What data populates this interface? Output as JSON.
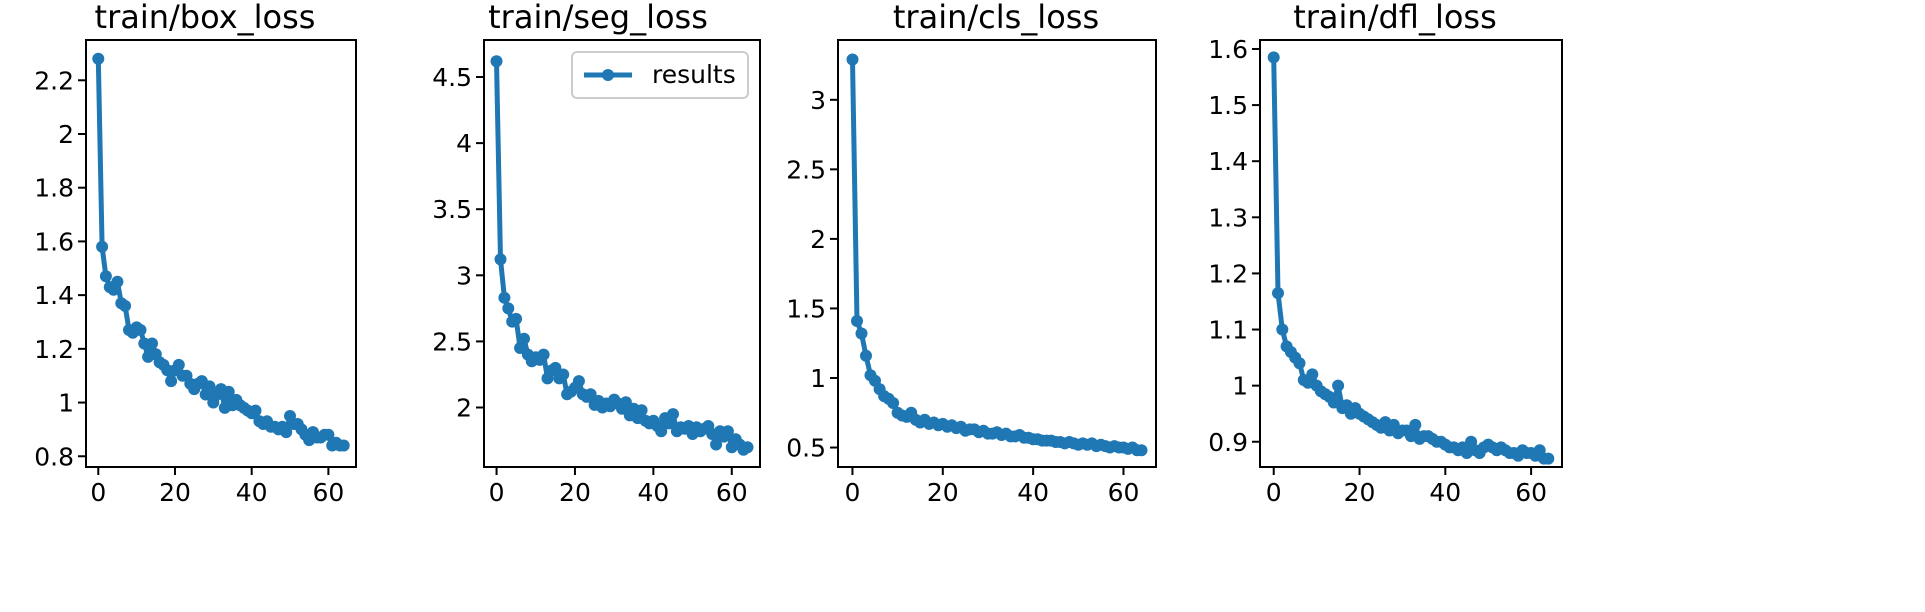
{
  "chart_data": [
    {
      "type": "line",
      "title": "train/box_loss",
      "xlabel": "",
      "ylabel": "",
      "xlim": [
        -3.2,
        67.2
      ],
      "ylim": [
        0.76,
        2.35
      ],
      "xticks": [
        0,
        20,
        40,
        60
      ],
      "yticks": [
        0.8,
        1.0,
        1.2,
        1.4,
        1.6,
        1.8,
        2.0,
        2.2
      ],
      "color": "#1f77b4",
      "grid": false,
      "series": [
        {
          "x": [
            0,
            1,
            2,
            3,
            4,
            5,
            6,
            7,
            8,
            9,
            10,
            11,
            12,
            13,
            14,
            15,
            16,
            17,
            18,
            19,
            20,
            21,
            22,
            23,
            24,
            25,
            26,
            27,
            28,
            29,
            30,
            31,
            32,
            33,
            34,
            35,
            36,
            37,
            38,
            39,
            40,
            41,
            42,
            43,
            44,
            45,
            46,
            47,
            48,
            49,
            50,
            51,
            52,
            53,
            54,
            55,
            56,
            57,
            58,
            59,
            60,
            61,
            62,
            63,
            64
          ],
          "values": [
            2.28,
            1.58,
            1.47,
            1.43,
            1.42,
            1.45,
            1.37,
            1.36,
            1.27,
            1.26,
            1.28,
            1.27,
            1.22,
            1.17,
            1.22,
            1.18,
            1.15,
            1.14,
            1.12,
            1.08,
            1.12,
            1.14,
            1.1,
            1.1,
            1.07,
            1.05,
            1.07,
            1.08,
            1.03,
            1.06,
            1.0,
            1.03,
            1.05,
            0.98,
            1.04,
            0.99,
            1.01,
            0.99,
            0.98,
            0.97,
            0.96,
            0.97,
            0.93,
            0.92,
            0.93,
            0.91,
            0.91,
            0.9,
            0.91,
            0.89,
            0.95,
            0.92,
            0.92,
            0.9,
            0.88,
            0.86,
            0.89,
            0.87,
            0.87,
            0.88,
            0.88,
            0.84,
            0.85,
            0.84,
            0.84
          ]
        }
      ]
    },
    {
      "type": "line",
      "title": "train/seg_loss",
      "xlabel": "",
      "ylabel": "",
      "xlim": [
        -3.2,
        67.2
      ],
      "ylim": [
        1.55,
        4.78
      ],
      "xticks": [
        0,
        20,
        40,
        60
      ],
      "yticks": [
        2.0,
        2.5,
        3.0,
        3.5,
        4.0,
        4.5
      ],
      "color": "#1f77b4",
      "grid": false,
      "legend": {
        "position": "upper right",
        "entries": [
          "results"
        ]
      },
      "series": [
        {
          "name": "results",
          "x": [
            0,
            1,
            2,
            3,
            4,
            5,
            6,
            7,
            8,
            9,
            10,
            11,
            12,
            13,
            14,
            15,
            16,
            17,
            18,
            19,
            20,
            21,
            22,
            23,
            24,
            25,
            26,
            27,
            28,
            29,
            30,
            31,
            32,
            33,
            34,
            35,
            36,
            37,
            38,
            39,
            40,
            41,
            42,
            43,
            44,
            45,
            46,
            47,
            48,
            49,
            50,
            51,
            52,
            53,
            54,
            55,
            56,
            57,
            58,
            59,
            60,
            61,
            62,
            63,
            64
          ],
          "values": [
            4.62,
            3.12,
            2.83,
            2.75,
            2.65,
            2.67,
            2.45,
            2.52,
            2.4,
            2.35,
            2.38,
            2.36,
            2.4,
            2.22,
            2.28,
            2.3,
            2.22,
            2.25,
            2.1,
            2.12,
            2.15,
            2.2,
            2.1,
            2.08,
            2.1,
            2.02,
            2.05,
            2.0,
            2.03,
            2.01,
            2.06,
            2.03,
            1.99,
            2.04,
            1.94,
            1.99,
            1.92,
            1.98,
            1.9,
            1.88,
            1.9,
            1.86,
            1.82,
            1.92,
            1.88,
            1.95,
            1.82,
            1.85,
            1.84,
            1.86,
            1.8,
            1.85,
            1.82,
            1.84,
            1.86,
            1.8,
            1.72,
            1.82,
            1.78,
            1.82,
            1.7,
            1.76,
            1.72,
            1.68,
            1.7
          ]
        }
      ]
    },
    {
      "type": "line",
      "title": "train/cls_loss",
      "xlabel": "",
      "ylabel": "",
      "xlim": [
        -3.2,
        67.2
      ],
      "ylim": [
        0.36,
        3.43
      ],
      "xticks": [
        0,
        20,
        40,
        60
      ],
      "yticks": [
        0.5,
        1.0,
        1.5,
        2.0,
        2.5,
        3.0
      ],
      "color": "#1f77b4",
      "grid": false,
      "series": [
        {
          "x": [
            0,
            1,
            2,
            3,
            4,
            5,
            6,
            7,
            8,
            9,
            10,
            11,
            12,
            13,
            14,
            15,
            16,
            17,
            18,
            19,
            20,
            21,
            22,
            23,
            24,
            25,
            26,
            27,
            28,
            29,
            30,
            31,
            32,
            33,
            34,
            35,
            36,
            37,
            38,
            39,
            40,
            41,
            42,
            43,
            44,
            45,
            46,
            47,
            48,
            49,
            50,
            51,
            52,
            53,
            54,
            55,
            56,
            57,
            58,
            59,
            60,
            61,
            62,
            63,
            64
          ],
          "values": [
            3.29,
            1.41,
            1.32,
            1.16,
            1.02,
            0.98,
            0.92,
            0.87,
            0.85,
            0.82,
            0.75,
            0.73,
            0.72,
            0.75,
            0.7,
            0.68,
            0.7,
            0.67,
            0.68,
            0.66,
            0.67,
            0.65,
            0.66,
            0.64,
            0.65,
            0.62,
            0.63,
            0.63,
            0.61,
            0.62,
            0.6,
            0.6,
            0.61,
            0.59,
            0.6,
            0.58,
            0.58,
            0.59,
            0.57,
            0.57,
            0.56,
            0.56,
            0.55,
            0.55,
            0.55,
            0.54,
            0.54,
            0.53,
            0.54,
            0.53,
            0.52,
            0.53,
            0.52,
            0.53,
            0.51,
            0.52,
            0.51,
            0.5,
            0.51,
            0.5,
            0.5,
            0.49,
            0.5,
            0.48,
            0.48
          ]
        }
      ]
    },
    {
      "type": "line",
      "title": "train/dfl_loss",
      "xlabel": "",
      "ylabel": "",
      "xlim": [
        -3.2,
        67.2
      ],
      "ylim": [
        0.855,
        1.616
      ],
      "xticks": [
        0,
        20,
        40,
        60
      ],
      "yticks": [
        0.9,
        1.0,
        1.1,
        1.2,
        1.3,
        1.4,
        1.5,
        1.6
      ],
      "color": "#1f77b4",
      "grid": false,
      "series": [
        {
          "x": [
            0,
            1,
            2,
            3,
            4,
            5,
            6,
            7,
            8,
            9,
            10,
            11,
            12,
            13,
            14,
            15,
            16,
            17,
            18,
            19,
            20,
            21,
            22,
            23,
            24,
            25,
            26,
            27,
            28,
            29,
            30,
            31,
            32,
            33,
            34,
            35,
            36,
            37,
            38,
            39,
            40,
            41,
            42,
            43,
            44,
            45,
            46,
            47,
            48,
            49,
            50,
            51,
            52,
            53,
            54,
            55,
            56,
            57,
            58,
            59,
            60,
            61,
            62,
            63,
            64
          ],
          "values": [
            1.585,
            1.165,
            1.1,
            1.07,
            1.06,
            1.05,
            1.04,
            1.01,
            1.005,
            1.02,
            1.0,
            0.99,
            0.985,
            0.98,
            0.97,
            1.0,
            0.96,
            0.965,
            0.95,
            0.96,
            0.95,
            0.945,
            0.94,
            0.935,
            0.93,
            0.925,
            0.935,
            0.92,
            0.93,
            0.915,
            0.92,
            0.92,
            0.91,
            0.93,
            0.905,
            0.91,
            0.91,
            0.905,
            0.9,
            0.9,
            0.895,
            0.89,
            0.89,
            0.885,
            0.89,
            0.88,
            0.9,
            0.885,
            0.88,
            0.89,
            0.895,
            0.89,
            0.885,
            0.89,
            0.885,
            0.88,
            0.88,
            0.875,
            0.885,
            0.88,
            0.88,
            0.875,
            0.885,
            0.87,
            0.87
          ]
        }
      ]
    }
  ]
}
